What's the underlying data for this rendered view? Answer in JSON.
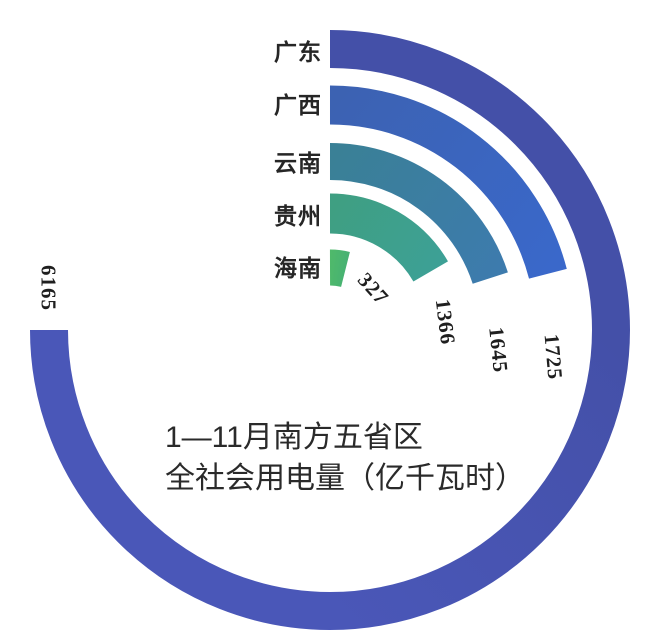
{
  "chart_data": {
    "type": "radial-bar",
    "title_line1": "1—11月南方五省区",
    "title_line2": "全社会用电量（亿千瓦时）",
    "unit": "亿千瓦时",
    "categories": [
      "广东",
      "广西",
      "云南",
      "贵州",
      "海南"
    ],
    "values": [
      6165,
      1725,
      1645,
      1366,
      327
    ],
    "value_labels": [
      "6165",
      "1725",
      "1645",
      "1366",
      "327"
    ],
    "max_value": 6165,
    "max_angle_deg": 270,
    "start_angle_deg": 0,
    "grid": false,
    "legend_position": "none",
    "text_color": "#262626",
    "background_color": "#ffffff",
    "ring_colors": [
      {
        "start": "#4450a8",
        "end": "#4a57b8"
      },
      {
        "start": "#3c62b2",
        "end": "#3a68ca"
      },
      {
        "start": "#3a8096",
        "end": "#3d7bad"
      },
      {
        "start": "#3f9f82",
        "end": "#3da095"
      },
      {
        "start": "#4fb96b",
        "end": "#47b272"
      }
    ]
  }
}
